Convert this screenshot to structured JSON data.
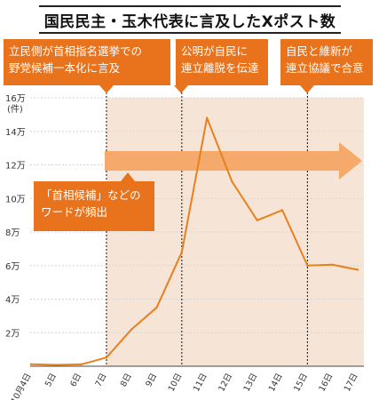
{
  "title": "国民民主・玉木代表に言及したXポスト数",
  "callouts": [
    {
      "line1": "立民側が首相指名選挙での",
      "line2": "野党候補一本化に言及"
    },
    {
      "line1": "公明が自民に",
      "line2": "連立離脱を伝達"
    },
    {
      "line1": "自民と維新が",
      "line2": "連立協議で合意"
    }
  ],
  "note": {
    "line1": "「首相候補」などの",
    "line2": "ワードが頻出"
  },
  "colors": {
    "line": "#e8801e",
    "shade": "#f6e4d6",
    "arrow": "#f5a96a",
    "accent": "#e8731c"
  },
  "chart_data": {
    "type": "line",
    "title": "国民民主・玉木代表に言及したXポスト数",
    "ylabel": "(件)",
    "xlabel": "",
    "categories": [
      "10月4日",
      "5日",
      "6日",
      "7日",
      "8日",
      "9日",
      "10日",
      "11日",
      "12日",
      "13日",
      "14日",
      "15日",
      "16日",
      "17日"
    ],
    "values": [
      1200,
      800,
      1100,
      5200,
      22000,
      35000,
      68000,
      148000,
      110000,
      87000,
      93000,
      60000,
      60500,
      57500
    ],
    "ylim": [
      0,
      160000
    ],
    "yticks": [
      20000,
      40000,
      60000,
      80000,
      100000,
      120000,
      140000,
      160000
    ],
    "ytick_labels": [
      "2万",
      "4万",
      "6万",
      "8万",
      "10万",
      "12万",
      "14万",
      "16万"
    ],
    "grid": true,
    "event_markers": [
      "7日",
      "10日",
      "15日"
    ]
  }
}
